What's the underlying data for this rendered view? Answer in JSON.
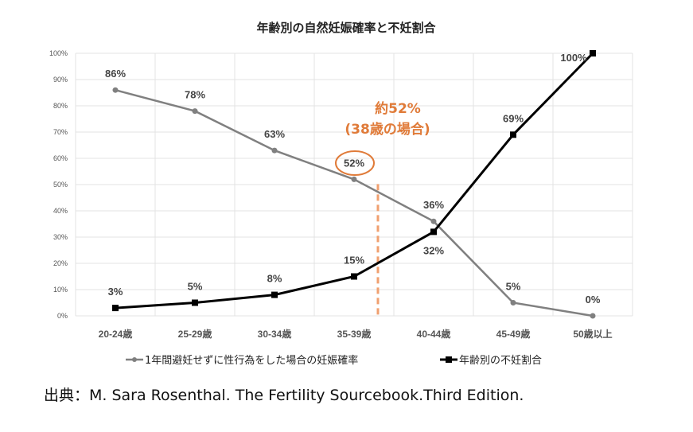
{
  "chart_data": {
    "type": "line",
    "title": "年齢別の自然妊娠確率と不妊割合",
    "categories": [
      "20-24歳",
      "25-29歳",
      "30-34歳",
      "35-39歳",
      "40-44歳",
      "45-49歳",
      "50歳以上"
    ],
    "ylim": [
      0,
      100
    ],
    "yticks": [
      "0%",
      "10%",
      "20%",
      "30%",
      "40%",
      "50%",
      "60%",
      "70%",
      "80%",
      "90%",
      "100%"
    ],
    "grid": true,
    "legend_position": "bottom",
    "series": [
      {
        "name": "1年間避妊せずに性行為をした場合の妊娠確率",
        "values": [
          86,
          78,
          63,
          52,
          36,
          5,
          0
        ],
        "labels": [
          "86%",
          "78%",
          "63%",
          "52%",
          "36%",
          "5%",
          "0%"
        ],
        "color": "#808080",
        "marker": "circle"
      },
      {
        "name": "年齢別の不妊割合",
        "values": [
          3,
          5,
          8,
          15,
          32,
          69,
          100
        ],
        "labels": [
          "3%",
          "5%",
          "8%",
          "15%",
          "32%",
          "69%",
          "100%"
        ],
        "color": "#000000",
        "marker": "square"
      }
    ],
    "annotation": {
      "line1": "約52%",
      "line2": "(38歳の場合)",
      "color": "#e07b39",
      "highlight_value": 52,
      "highlight_category_position": 3.3
    }
  },
  "source": "出典：M. Sara Rosenthal. The Fertility Sourcebook.Third Edition."
}
